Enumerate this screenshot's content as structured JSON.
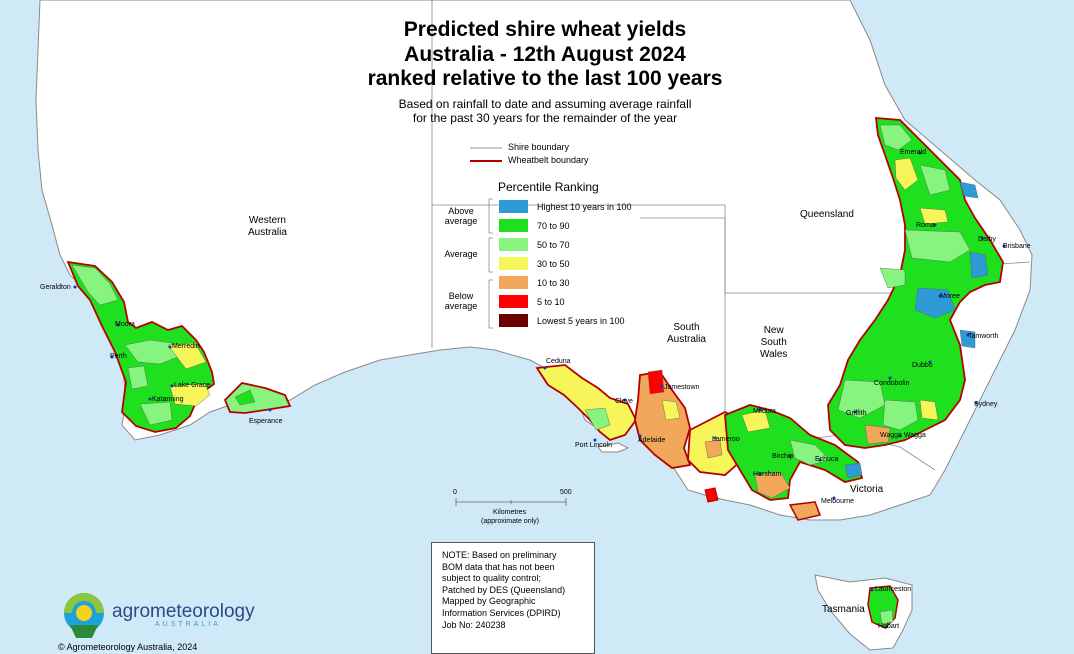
{
  "title": {
    "line1": "Predicted shire wheat yields",
    "line2": "Australia - 12th August 2024",
    "line3": "ranked relative to the last 100 years"
  },
  "subtitle": {
    "line1": "Based on rainfall to date and assuming average rainfall",
    "line2": "for the past 30 years for the remainder of the year"
  },
  "boundary_legend": {
    "shire": "Shire boundary",
    "wheatbelt": "Wheatbelt boundary"
  },
  "legend": {
    "heading": "Percentile Ranking",
    "groups": {
      "above": [
        "Above",
        "average"
      ],
      "average": "Average",
      "below": [
        "Below",
        "average"
      ]
    },
    "classes": [
      {
        "label": "Highest 10 years in 100",
        "color": "#2e9bd6"
      },
      {
        "label": "70 to 90",
        "color": "#1ee01e"
      },
      {
        "label": "50 to 70",
        "color": "#86f47e"
      },
      {
        "label": "30 to 50",
        "color": "#f6f55a"
      },
      {
        "label": "10 to 30",
        "color": "#f2a85a"
      },
      {
        "label": "5 to 10",
        "color": "#ff0000"
      },
      {
        "label": "Lowest 5 years in 100",
        "color": "#6b0000"
      }
    ]
  },
  "colors": {
    "ocean": "#cfe9f6",
    "land": "#ffffff",
    "wheatbelt_boundary": "#b30000",
    "state_border": "#888888"
  },
  "states": {
    "wa": [
      "Western",
      "Australia"
    ],
    "sa": [
      "South",
      "Australia"
    ],
    "qld": "Queensland",
    "nsw": [
      "New",
      "South",
      "Wales"
    ],
    "vic": "Victoria",
    "tas": "Tasmania"
  },
  "towns": {
    "geraldton": "Geraldton",
    "moora": "Moora",
    "perth": "Perth",
    "merredin": "Merredin",
    "lake_grace": "Lake Grace",
    "katanning": "Katanning",
    "esperance": "Esperance",
    "ceduna": "Ceduna",
    "cleve": "Cleve",
    "port_lincoln": "Port Lincoln",
    "jamestown": "Jamestown",
    "adelaide": "Adelaide",
    "lameroo": "Lameroo",
    "mildura": "Mildura",
    "birchip": "Birchip",
    "horsham": "Horsham",
    "echuca": "Echuca",
    "melbourne": "Melbourne",
    "griffith": "Griffith",
    "wagga_wagga": "Wagga Wagga",
    "condobolin": "Condobolin",
    "dubbo": "Dubbo",
    "tamworth": "Tamworth",
    "moree": "Moree",
    "sydney": "Sydney",
    "roma": "Roma",
    "dalby": "Dalby",
    "brisbane": "Brisbane",
    "emerald": "Emerald",
    "launceston": "Launceston",
    "hobart": "Hobart"
  },
  "scale": {
    "min": "0",
    "max": "500",
    "unit": "Kilometres",
    "note": "(approximate only)"
  },
  "note": [
    "NOTE: Based on preliminary",
    "BOM data that has not been",
    "subject to quality control;",
    "Patched by DES (Queensland)",
    "Mapped by Geographic",
    "Information Services (DPIRD)",
    "Job No: 240238"
  ],
  "logo": {
    "name": "agrometeorology",
    "tagline": "AUSTRALIA"
  },
  "copyright": "© Agrometeorology Australia, 2024"
}
